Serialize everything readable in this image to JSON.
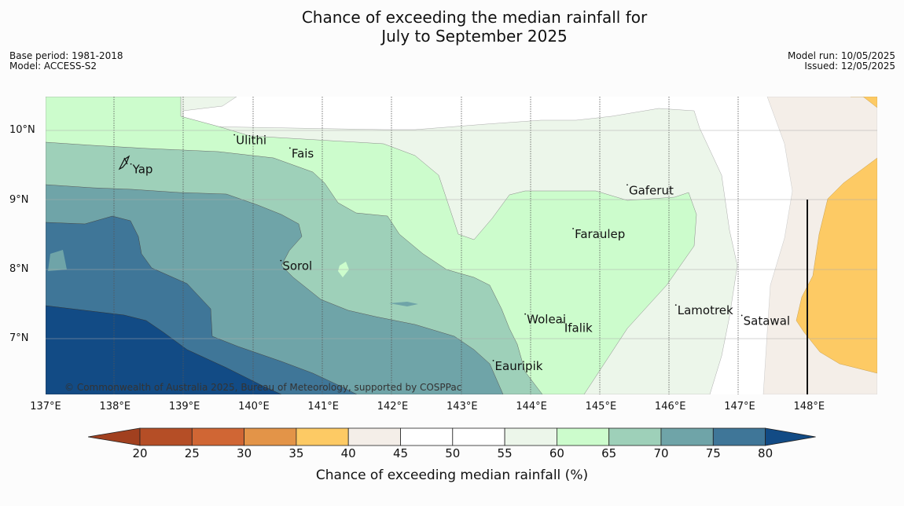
{
  "title_line1": "Chance of exceeding the median rainfall for",
  "title_line2": "July to September 2025",
  "meta_left": {
    "base_period": "Base period: 1981-2018",
    "model": "Model: ACCESS-S2"
  },
  "meta_right": {
    "model_run": "Model run: 10/05/2025",
    "issued": "Issued: 12/05/2025"
  },
  "copyright": "© Commonwealth of Australia 2025, Bureau of Meteorology, supported by COSPPac",
  "lon_ticks": [
    "137°E",
    "138°E",
    "139°E",
    "140°E",
    "141°E",
    "142°E",
    "143°E",
    "144°E",
    "145°E",
    "146°E",
    "147°E",
    "148°E"
  ],
  "lat_ticks": [
    "10°N",
    "9°N",
    "8°N",
    "7°N"
  ],
  "places": [
    {
      "name": "Yap",
      "lon": 138.23,
      "lat": 9.53
    },
    {
      "name": "Ulithi",
      "lon": 139.72,
      "lat": 9.95
    },
    {
      "name": "Fais",
      "lon": 140.52,
      "lat": 9.76
    },
    {
      "name": "Gaferut",
      "lon": 145.38,
      "lat": 9.23
    },
    {
      "name": "Faraulep",
      "lon": 144.6,
      "lat": 8.6
    },
    {
      "name": "Sorol",
      "lon": 140.39,
      "lat": 8.14
    },
    {
      "name": "Woleai",
      "lon": 143.91,
      "lat": 7.37
    },
    {
      "name": "Ifalik",
      "lon": 144.45,
      "lat": 7.25
    },
    {
      "name": "Lamotrek",
      "lon": 146.08,
      "lat": 7.5
    },
    {
      "name": "Satawal",
      "lon": 147.03,
      "lat": 7.35
    },
    {
      "name": "Eauripik",
      "lon": 143.45,
      "lat": 6.7
    }
  ],
  "colorbar": {
    "title": "Chance of exceeding median rainfall (%)",
    "labels": [
      "20",
      "25",
      "30",
      "35",
      "40",
      "45",
      "50",
      "55",
      "60",
      "65",
      "70",
      "75",
      "80"
    ],
    "colors": [
      "#a1401f",
      "#b54e26",
      "#d06634",
      "#e39448",
      "#fdca64",
      "#f4eee8",
      "#ffffff",
      "#ffffff",
      "#ecf6ea",
      "#ccfccc",
      "#9ed0b9",
      "#6fa4a8",
      "#3f7698",
      "#124b85"
    ]
  },
  "chart_data": {
    "type": "heatmap",
    "title": "Chance of exceeding the median rainfall for July to September 2025",
    "xlabel": "",
    "ylabel": "",
    "xlim": [
      137,
      149
    ],
    "ylim": [
      6.2,
      10.5
    ],
    "legend_placement": "bottom",
    "grid": true,
    "color_scale_values": [
      20,
      25,
      30,
      35,
      40,
      45,
      50,
      55,
      60,
      65,
      70,
      75,
      80
    ]
  }
}
